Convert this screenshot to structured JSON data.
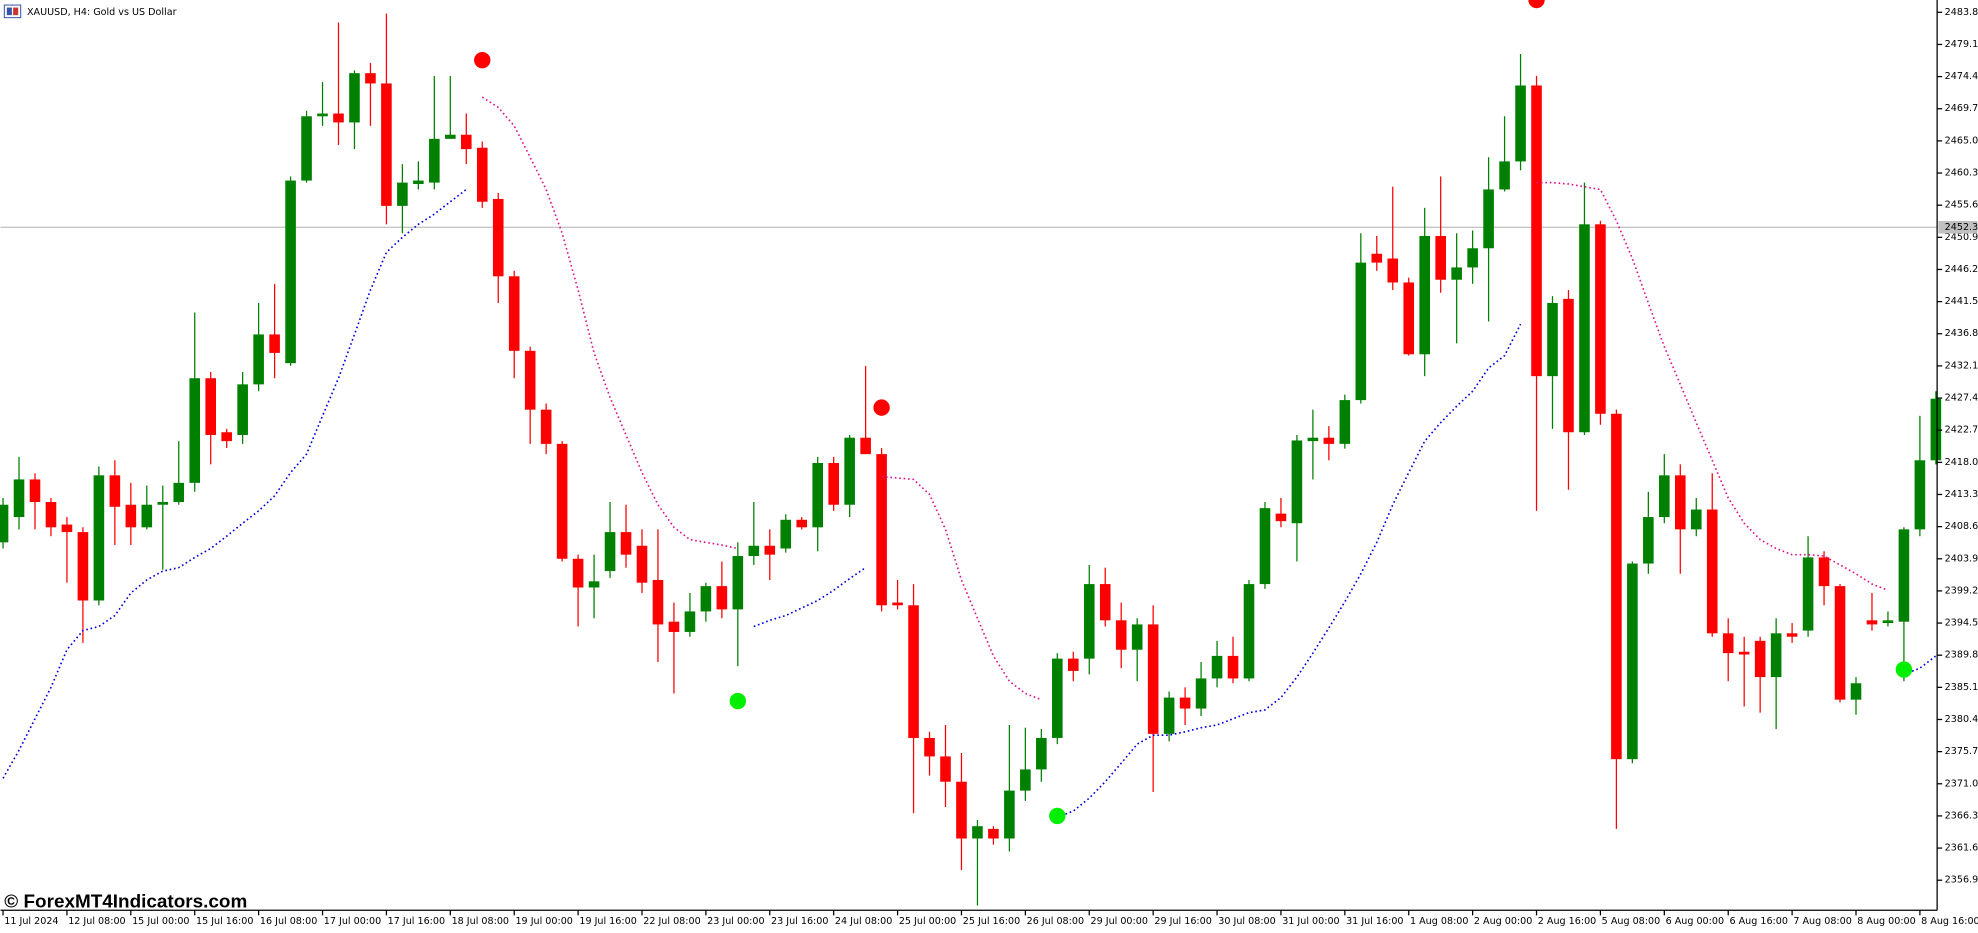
{
  "chart_data": {
    "type": "candlestick",
    "title": "XAUUSD, H4: Gold vs US Dollar",
    "watermark": "© ForexMT4Indicators.com",
    "up_color": "#008000",
    "down_color": "#ff0000",
    "price_line": 2452.37,
    "ylim": [
      2352.5,
      2485.6
    ],
    "yticks": [
      {
        "value": 2483.8,
        "label": "2483.80"
      },
      {
        "value": 2479.1,
        "label": "2479.10"
      },
      {
        "value": 2474.4,
        "label": "2474.40"
      },
      {
        "value": 2469.7,
        "label": "2469.70"
      },
      {
        "value": 2465.0,
        "label": "2465.00"
      },
      {
        "value": 2460.3,
        "label": "2460.30"
      },
      {
        "value": 2455.6,
        "label": "2455.60"
      },
      {
        "value": 2450.9,
        "label": "2450.90"
      },
      {
        "value": 2446.2,
        "label": "2446.20"
      },
      {
        "value": 2441.5,
        "label": "2441.50"
      },
      {
        "value": 2436.8,
        "label": "2436.80"
      },
      {
        "value": 2432.1,
        "label": "2432.10"
      },
      {
        "value": 2427.4,
        "label": "2427.40"
      },
      {
        "value": 2422.7,
        "label": "2422.70"
      },
      {
        "value": 2418.0,
        "label": "2418.00"
      },
      {
        "value": 2413.3,
        "label": "2413.30"
      },
      {
        "value": 2408.6,
        "label": "2408.60"
      },
      {
        "value": 2403.9,
        "label": "2403.90"
      },
      {
        "value": 2399.2,
        "label": "2399.20"
      },
      {
        "value": 2394.5,
        "label": "2394.50"
      },
      {
        "value": 2389.8,
        "label": "2389.80"
      },
      {
        "value": 2385.1,
        "label": "2385.10"
      },
      {
        "value": 2380.4,
        "label": "2380.40"
      },
      {
        "value": 2375.7,
        "label": "2375.70"
      },
      {
        "value": 2371.0,
        "label": "2371.00"
      },
      {
        "value": 2366.3,
        "label": "2366.30"
      },
      {
        "value": 2361.6,
        "label": "2361.60"
      },
      {
        "value": 2356.9,
        "label": "2356.90"
      }
    ],
    "categories": [
      "11 Jul 2024",
      null,
      null,
      null,
      "12 Jul 08:00",
      null,
      null,
      null,
      "15 Jul 00:00",
      null,
      null,
      null,
      "15 Jul 16:00",
      null,
      null,
      null,
      "16 Jul 08:00",
      null,
      null,
      null,
      "17 Jul 00:00",
      null,
      null,
      null,
      "17 Jul 16:00",
      null,
      null,
      null,
      "18 Jul 08:00",
      null,
      null,
      null,
      "19 Jul 00:00",
      null,
      null,
      null,
      "19 Jul 16:00",
      null,
      null,
      null,
      "22 Jul 08:00",
      null,
      null,
      null,
      "23 Jul 00:00",
      null,
      null,
      null,
      "23 Jul 16:00",
      null,
      null,
      null,
      "24 Jul 08:00",
      null,
      null,
      null,
      "25 Jul 00:00",
      null,
      null,
      null,
      "25 Jul 16:00",
      null,
      null,
      null,
      "26 Jul 08:00",
      null,
      null,
      null,
      "29 Jul 00:00",
      null,
      null,
      null,
      "29 Jul 16:00",
      null,
      null,
      null,
      "30 Jul 08:00",
      null,
      null,
      null,
      "31 Jul 00:00",
      null,
      null,
      null,
      "31 Jul 16:00",
      null,
      null,
      null,
      "1 Aug 08:00",
      null,
      null,
      null,
      "2 Aug 00:00",
      null,
      null,
      null,
      "2 Aug 16:00",
      null,
      null,
      null,
      "5 Aug 08:00",
      null,
      null,
      null,
      "6 Aug 00:00",
      null,
      null,
      null,
      "6 Aug 16:00",
      null,
      null,
      null,
      "7 Aug 08:00",
      null,
      null,
      null,
      "8 Aug 00:00",
      null,
      null,
      null,
      "8 Aug 16:00",
      null
    ],
    "open": [
      2406.3,
      2410.0,
      2415.5,
      2412.2,
      2408.9,
      2407.8,
      2397.8,
      2416.1,
      2411.8,
      2408.5,
      2411.8,
      2412.2,
      2415.0,
      2430.3,
      2422.4,
      2422.0,
      2429.4,
      2436.7,
      2432.5,
      2459.2,
      2468.6,
      2469.0,
      2467.7,
      2474.9,
      2473.4,
      2455.5,
      2458.7,
      2458.9,
      2465.3,
      2465.9,
      2464.0,
      2456.5,
      2445.2,
      2434.3,
      2425.7,
      2420.7,
      2403.9,
      2399.7,
      2402.1,
      2407.8,
      2405.8,
      2400.8,
      2394.7,
      2393.2,
      2396.2,
      2399.9,
      2396.5,
      2404.3,
      2405.8,
      2405.4,
      2409.6,
      2408.5,
      2417.9,
      2411.8,
      2421.6,
      2419.2,
      2397.5,
      2397.1,
      2377.7,
      2375.0,
      2371.3,
      2363.0,
      2364.4,
      2363.0,
      2370.0,
      2373.1,
      2377.7,
      2389.3,
      2389.3,
      2400.2,
      2394.9,
      2390.6,
      2394.3,
      2378.3,
      2383.6,
      2382.0,
      2386.4,
      2389.7,
      2386.4,
      2400.2,
      2410.5,
      2409.1,
      2421.1,
      2421.6,
      2420.7,
      2427.1,
      2448.5,
      2447.8,
      2444.3,
      2433.8,
      2451.1,
      2444.7,
      2446.5,
      2449.3,
      2457.9,
      2462.0,
      2473.1,
      2430.6,
      2441.9,
      2422.4,
      2452.8,
      2425.1,
      2374.6,
      2403.2,
      2410.0,
      2416.1,
      2408.2,
      2411.1,
      2393.0,
      2390.3,
      2391.9,
      2386.6,
      2393.0,
      2393.4,
      2404.1,
      2399.9,
      2383.3,
      2394.9,
      2394.5,
      2394.7,
      2408.2,
      2418.3
    ],
    "high": [
      2412.8,
      2418.8,
      2416.4,
      2412.8,
      2410.0,
      2408.5,
      2417.4,
      2418.3,
      2415.0,
      2414.6,
      2414.6,
      2421.1,
      2439.9,
      2431.2,
      2422.9,
      2431.2,
      2441.3,
      2444.1,
      2459.8,
      2469.4,
      2473.6,
      2482.3,
      2475.3,
      2476.4,
      2483.6,
      2461.6,
      2462.0,
      2474.5,
      2474.5,
      2469.0,
      2464.9,
      2457.4,
      2446.0,
      2434.9,
      2426.6,
      2421.1,
      2404.5,
      2404.5,
      2412.2,
      2411.8,
      2408.2,
      2408.2,
      2397.5,
      2398.9,
      2400.4,
      2403.5,
      2406.3,
      2412.2,
      2408.2,
      2410.4,
      2410.0,
      2418.8,
      2418.8,
      2422.0,
      2432.1,
      2420.1,
      2400.8,
      2400.2,
      2378.6,
      2379.6,
      2375.5,
      2365.7,
      2364.8,
      2379.6,
      2379.2,
      2379.0,
      2390.1,
      2390.3,
      2403.0,
      2402.6,
      2397.5,
      2395.2,
      2397.1,
      2384.5,
      2385.1,
      2388.8,
      2391.9,
      2392.5,
      2400.8,
      2412.2,
      2412.8,
      2422.0,
      2425.7,
      2423.3,
      2427.9,
      2451.5,
      2451.1,
      2458.3,
      2445.0,
      2455.2,
      2459.8,
      2451.5,
      2451.9,
      2462.6,
      2468.6,
      2477.7,
      2474.5,
      2442.3,
      2443.2,
      2458.9,
      2453.3,
      2425.7,
      2403.5,
      2413.7,
      2419.2,
      2417.7,
      2412.8,
      2416.4,
      2395.2,
      2392.5,
      2392.5,
      2395.2,
      2394.5,
      2407.2,
      2405.0,
      2400.2,
      2386.6,
      2398.9,
      2396.2,
      2408.5,
      2424.8,
      2428.4
    ],
    "low": [
      2405.4,
      2408.2,
      2408.2,
      2407.2,
      2400.4,
      2391.6,
      2397.1,
      2405.9,
      2405.9,
      2408.2,
      2402.3,
      2411.8,
      2413.7,
      2417.7,
      2420.1,
      2420.7,
      2428.4,
      2430.3,
      2432.1,
      2458.9,
      2467.2,
      2464.4,
      2463.8,
      2467.2,
      2452.8,
      2451.5,
      2457.9,
      2457.9,
      2465.3,
      2461.6,
      2455.2,
      2441.3,
      2430.3,
      2420.7,
      2419.2,
      2403.5,
      2394.0,
      2395.2,
      2401.1,
      2402.6,
      2398.9,
      2388.8,
      2384.2,
      2392.5,
      2394.7,
      2395.2,
      2388.2,
      2403.0,
      2400.8,
      2404.8,
      2408.2,
      2405.0,
      2410.9,
      2410.0,
      2419.2,
      2396.2,
      2396.5,
      2366.7,
      2372.2,
      2367.6,
      2358.4,
      2353.2,
      2362.1,
      2361.1,
      2368.5,
      2371.3,
      2376.8,
      2386.0,
      2387.0,
      2394.0,
      2387.9,
      2386.0,
      2369.8,
      2377.2,
      2379.6,
      2380.9,
      2385.1,
      2385.7,
      2386.0,
      2399.5,
      2408.5,
      2403.5,
      2415.5,
      2418.3,
      2420.0,
      2426.6,
      2446.0,
      2443.2,
      2433.6,
      2430.6,
      2442.8,
      2435.4,
      2444.1,
      2438.6,
      2457.6,
      2460.7,
      2410.9,
      2422.9,
      2414.0,
      2422.0,
      2423.5,
      2364.4,
      2374.0,
      2401.7,
      2409.1,
      2401.7,
      2407.2,
      2392.5,
      2386.0,
      2382.3,
      2381.4,
      2379.0,
      2391.6,
      2392.5,
      2397.1,
      2382.9,
      2381.1,
      2393.4,
      2394.0,
      2386.0,
      2407.2,
      2417.7
    ],
    "close": [
      2411.8,
      2415.5,
      2412.2,
      2408.5,
      2407.8,
      2397.8,
      2416.1,
      2411.5,
      2408.5,
      2411.8,
      2412.2,
      2415.0,
      2430.3,
      2422.0,
      2421.1,
      2429.4,
      2436.7,
      2434.0,
      2459.2,
      2468.6,
      2469.0,
      2467.7,
      2474.9,
      2473.4,
      2455.5,
      2458.9,
      2459.2,
      2465.3,
      2465.9,
      2463.8,
      2456.1,
      2445.2,
      2434.3,
      2425.7,
      2420.7,
      2403.9,
      2399.7,
      2400.6,
      2407.8,
      2404.5,
      2400.4,
      2394.3,
      2393.2,
      2396.2,
      2399.9,
      2396.5,
      2404.3,
      2405.8,
      2404.5,
      2409.6,
      2408.5,
      2417.9,
      2411.8,
      2421.6,
      2419.2,
      2397.1,
      2397.1,
      2377.7,
      2375.0,
      2371.3,
      2363.0,
      2364.8,
      2363.0,
      2370.0,
      2373.1,
      2377.7,
      2389.3,
      2387.5,
      2400.2,
      2394.9,
      2390.6,
      2394.3,
      2378.3,
      2383.6,
      2382.0,
      2386.4,
      2389.7,
      2386.4,
      2400.2,
      2411.3,
      2409.4,
      2421.2,
      2421.6,
      2420.7,
      2427.1,
      2447.2,
      2447.2,
      2444.3,
      2433.8,
      2451.1,
      2444.7,
      2446.5,
      2449.3,
      2457.9,
      2462.0,
      2473.1,
      2430.6,
      2441.3,
      2422.4,
      2452.8,
      2425.1,
      2374.6,
      2403.2,
      2410.0,
      2416.1,
      2408.2,
      2411.1,
      2393.0,
      2390.1,
      2389.9,
      2386.6,
      2393.0,
      2392.5,
      2404.1,
      2399.9,
      2383.3,
      2385.7,
      2394.3,
      2394.9,
      2408.2,
      2418.3,
      2427.3
    ],
    "lines": [
      {
        "color": "#0000e0",
        "values": [
          2371.8,
          2375.9,
          2380.5,
          2385.1,
          2390.6,
          2393.4,
          2394.0,
          2395.6,
          2398.9,
          2400.8,
          2402.1,
          2402.6,
          2404.1,
          2405.4,
          2407.2,
          2409.1,
          2410.9,
          2413.1,
          2416.5,
          2419.2,
          2424.8,
          2430.3,
          2436.7,
          2443.2,
          2448.7,
          2450.9,
          2452.8,
          2454.3,
          2456.1,
          2457.9,
          null,
          null,
          null,
          null,
          null,
          null,
          null,
          null,
          null,
          null,
          null,
          null,
          null,
          null,
          null,
          null,
          null,
          2394.0,
          2394.9,
          2395.6,
          2396.7,
          2397.8,
          2399.3,
          2401.0,
          2402.6,
          null,
          null,
          null,
          null,
          null,
          null,
          null,
          null,
          null,
          null,
          null,
          2366.1,
          2367.0,
          2368.9,
          2371.3,
          2374.0,
          2376.8,
          2378.1,
          2378.1,
          2378.6,
          2379.2,
          2379.6,
          2380.5,
          2381.4,
          2381.8,
          2383.6,
          2386.6,
          2390.1,
          2393.8,
          2397.6,
          2401.7,
          2406.3,
          2411.8,
          2416.5,
          2421.1,
          2423.8,
          2426.2,
          2428.4,
          2431.8,
          2433.6,
          2438.2,
          null,
          null,
          null,
          null,
          null,
          null,
          null,
          null,
          null,
          null,
          null,
          null,
          null,
          null,
          null,
          null,
          null,
          null,
          null,
          null,
          null,
          null,
          null,
          2387.0,
          2387.9,
          2389.7
        ]
      },
      {
        "color": "#dd1493",
        "values": [
          null,
          null,
          null,
          null,
          null,
          null,
          null,
          null,
          null,
          null,
          null,
          null,
          null,
          null,
          null,
          null,
          null,
          null,
          null,
          null,
          null,
          null,
          null,
          null,
          null,
          null,
          null,
          null,
          null,
          null,
          2471.4,
          2469.9,
          2467.2,
          2462.6,
          2457.9,
          2451.5,
          2443.2,
          2434.0,
          2427.5,
          2422.0,
          2416.5,
          2411.8,
          2408.5,
          2406.7,
          2406.3,
          2405.9,
          2405.4,
          null,
          null,
          null,
          null,
          null,
          null,
          null,
          null,
          2415.9,
          2415.7,
          2415.5,
          2413.3,
          2408.2,
          2400.8,
          2395.2,
          2389.7,
          2386.0,
          2384.2,
          2383.3,
          null,
          null,
          null,
          null,
          null,
          null,
          null,
          null,
          null,
          null,
          null,
          null,
          null,
          null,
          null,
          null,
          null,
          null,
          null,
          null,
          null,
          null,
          null,
          null,
          null,
          null,
          null,
          null,
          null,
          null,
          2458.9,
          2458.9,
          2458.7,
          2458.3,
          2457.9,
          2453.3,
          2447.8,
          2441.3,
          2434.9,
          2429.4,
          2423.8,
          2418.3,
          2412.8,
          2409.1,
          2406.7,
          2405.4,
          2404.5,
          2404.5,
          2404.3,
          2403.0,
          2401.7,
          2400.2,
          2399.3,
          null,
          null,
          null
        ]
      }
    ],
    "signals": [
      {
        "color": "#ff0000",
        "values": [
          null,
          null,
          null,
          null,
          null,
          null,
          null,
          null,
          null,
          null,
          null,
          null,
          null,
          null,
          null,
          null,
          null,
          null,
          null,
          null,
          null,
          null,
          null,
          null,
          null,
          null,
          null,
          null,
          null,
          null,
          2476.8,
          null,
          null,
          null,
          null,
          null,
          null,
          null,
          null,
          null,
          null,
          null,
          null,
          null,
          null,
          null,
          null,
          null,
          null,
          null,
          null,
          null,
          null,
          null,
          null,
          2426.0,
          null,
          null,
          null,
          null,
          null,
          null,
          null,
          null,
          null,
          null,
          null,
          null,
          null,
          null,
          null,
          null,
          null,
          null,
          null,
          null,
          null,
          null,
          null,
          null,
          null,
          null,
          null,
          null,
          null,
          null,
          null,
          null,
          null,
          null,
          null,
          null,
          null,
          null,
          null,
          null,
          2485.6,
          null,
          null,
          null,
          null,
          null,
          null,
          null,
          null,
          null,
          null,
          null,
          null,
          null,
          null,
          null,
          null,
          null,
          null,
          null,
          null,
          null,
          null,
          null,
          null,
          null
        ]
      },
      {
        "color": "#00ee00",
        "values": [
          null,
          null,
          null,
          null,
          null,
          null,
          null,
          null,
          null,
          null,
          null,
          null,
          null,
          null,
          null,
          null,
          null,
          null,
          null,
          null,
          null,
          null,
          null,
          null,
          null,
          null,
          null,
          null,
          null,
          null,
          null,
          null,
          null,
          null,
          null,
          null,
          null,
          null,
          null,
          null,
          null,
          null,
          null,
          null,
          null,
          null,
          2383.1,
          null,
          null,
          null,
          null,
          null,
          null,
          null,
          null,
          null,
          null,
          null,
          null,
          null,
          null,
          null,
          null,
          null,
          null,
          null,
          2366.3,
          null,
          null,
          null,
          null,
          null,
          null,
          null,
          null,
          null,
          null,
          null,
          null,
          null,
          null,
          null,
          null,
          null,
          null,
          null,
          null,
          null,
          null,
          null,
          null,
          null,
          null,
          null,
          null,
          null,
          null,
          null,
          null,
          null,
          null,
          null,
          null,
          null,
          null,
          null,
          null,
          null,
          null,
          null,
          null,
          null,
          null,
          null,
          null,
          null,
          null,
          null,
          null,
          2387.7,
          null,
          null
        ]
      }
    ]
  }
}
